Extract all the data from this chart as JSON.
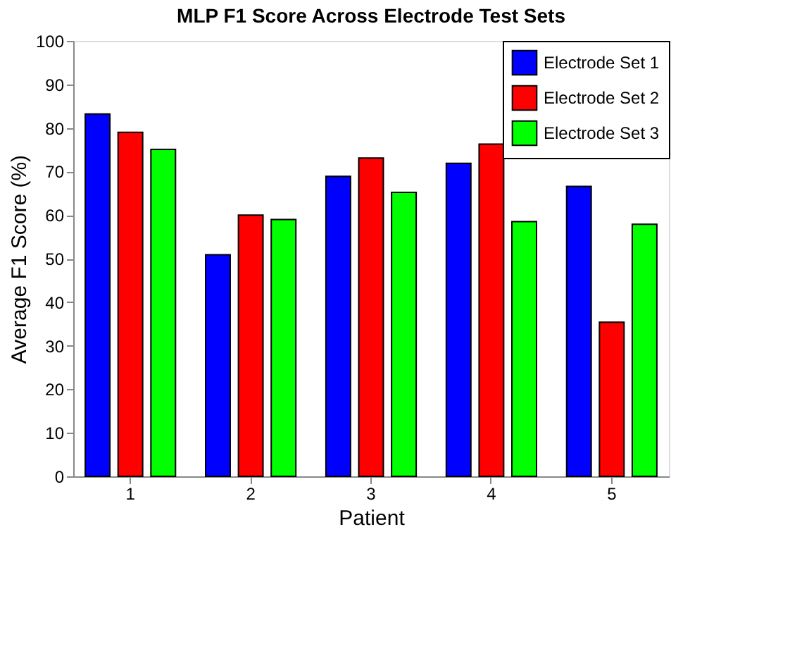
{
  "chart_data": {
    "type": "bar",
    "title": "MLP F1 Score Across Electrode Test Sets",
    "xlabel": "Patient",
    "ylabel": "Average F1 Score (%)",
    "categories": [
      "1",
      "2",
      "3",
      "4",
      "5"
    ],
    "series": [
      {
        "name": "Electrode Set 1",
        "color": "#0000ff",
        "values": [
          83.2,
          50.9,
          68.9,
          71.9,
          66.6
        ]
      },
      {
        "name": "Electrode Set 2",
        "color": "#ff0000",
        "values": [
          79.0,
          60.0,
          73.1,
          76.3,
          35.4
        ]
      },
      {
        "name": "Electrode Set 3",
        "color": "#00ff00",
        "values": [
          75.1,
          59.0,
          65.2,
          58.5,
          57.9
        ]
      }
    ],
    "ylim": [
      0,
      100
    ],
    "yticks": [
      0,
      10,
      20,
      30,
      40,
      50,
      60,
      70,
      80,
      90,
      100
    ],
    "grid": false,
    "legend": "top right"
  }
}
